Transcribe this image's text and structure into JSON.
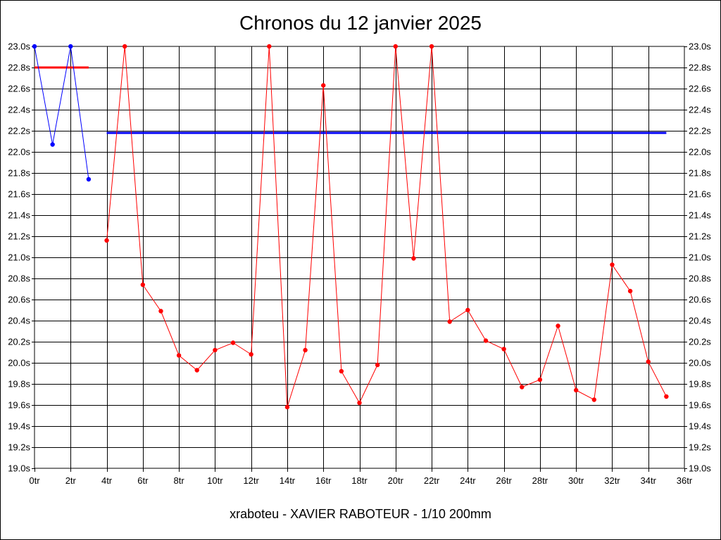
{
  "chart_data": {
    "type": "line",
    "title": "Chronos du 12 janvier 2025",
    "subtitle": "xraboteu - XAVIER RABOTEUR - 1/10 200mm",
    "xlim": [
      0,
      36
    ],
    "ylim": [
      19.0,
      23.0
    ],
    "x_ticks": [
      0,
      2,
      4,
      6,
      8,
      10,
      12,
      14,
      16,
      18,
      20,
      22,
      24,
      26,
      28,
      30,
      32,
      34,
      36
    ],
    "x_tick_labels": [
      "0tr",
      "2tr",
      "4tr",
      "6tr",
      "8tr",
      "10tr",
      "12tr",
      "14tr",
      "16tr",
      "18tr",
      "20tr",
      "22tr",
      "24tr",
      "26tr",
      "28tr",
      "30tr",
      "32tr",
      "34tr",
      "36tr"
    ],
    "y_ticks": [
      19.0,
      19.2,
      19.4,
      19.6,
      19.8,
      20.0,
      20.2,
      20.4,
      20.6,
      20.8,
      21.0,
      21.2,
      21.4,
      21.6,
      21.8,
      22.0,
      22.2,
      22.4,
      22.6,
      22.8,
      23.0
    ],
    "y_tick_labels": [
      "19.0s",
      "19.2s",
      "19.4s",
      "19.6s",
      "19.8s",
      "20.0s",
      "20.2s",
      "20.4s",
      "20.6s",
      "20.8s",
      "21.0s",
      "21.2s",
      "21.4s",
      "21.6s",
      "21.8s",
      "22.0s",
      "22.2s",
      "22.4s",
      "22.6s",
      "22.8s",
      "23.0s"
    ],
    "grid": true,
    "series": [
      {
        "color": "#0000ff",
        "x": [
          0,
          1,
          2,
          3
        ],
        "values": [
          23.0,
          22.07,
          23.0,
          21.74
        ]
      },
      {
        "color": "#ff0000",
        "x": [
          4,
          5,
          6,
          7,
          8,
          9,
          10,
          11,
          12,
          13,
          14,
          15,
          16,
          17,
          18,
          19,
          20,
          21,
          22,
          23,
          24,
          25,
          26,
          27,
          28,
          29,
          30,
          31,
          32,
          33,
          34,
          35
        ],
        "values": [
          21.16,
          23.0,
          20.74,
          20.49,
          20.07,
          19.93,
          20.12,
          20.19,
          20.08,
          23.0,
          19.58,
          20.12,
          22.63,
          19.92,
          19.62,
          19.98,
          23.0,
          20.99,
          23.0,
          20.39,
          20.5,
          20.21,
          20.13,
          19.77,
          19.84,
          20.35,
          19.74,
          19.65,
          20.93,
          20.68,
          20.01,
          19.68
        ]
      }
    ],
    "reference_lines": [
      {
        "color": "#ff0000",
        "x": [
          0,
          3
        ],
        "value": 22.8
      },
      {
        "color": "#0000ff",
        "x": [
          4,
          35
        ],
        "value": 22.18
      }
    ]
  }
}
